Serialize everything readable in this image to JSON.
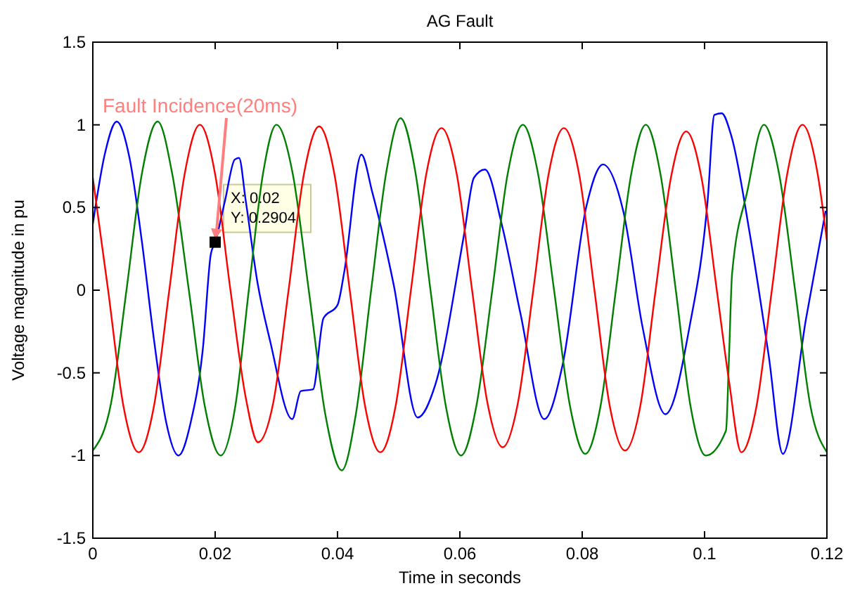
{
  "chart_data": {
    "type": "line",
    "title": "AG Fault",
    "xlabel": "Time in seconds",
    "ylabel": "Voltage magnitude in pu",
    "xlim": [
      0,
      0.12
    ],
    "xticks": [
      0,
      0.02,
      0.04,
      0.06,
      0.08,
      0.1,
      0.12
    ],
    "ylim": [
      -1.5,
      1.5
    ],
    "yticks": [
      -1.5,
      -1,
      -0.5,
      0,
      0.5,
      1,
      1.5
    ],
    "grid": false,
    "marker": "none",
    "line_style": "solid",
    "annotations": [
      {
        "text": "Fault Incidence(20ms)",
        "x": 0.02,
        "y": 0.2904
      },
      {
        "text": "X: 0.02\nY: 0.2904",
        "x": 0.02,
        "y": 0.2904
      }
    ],
    "series": [
      {
        "color": "#0000ff",
        "x": [
          0,
          0.002,
          0.0039,
          0.006,
          0.008,
          0.01,
          0.012,
          0.014,
          0.016,
          0.018,
          0.0193,
          0.02,
          0.0216,
          0.0232,
          0.0239,
          0.025,
          0.0269,
          0.029,
          0.0326,
          0.034,
          0.036,
          0.0377,
          0.04,
          0.0411,
          0.0439,
          0.0457,
          0.0492,
          0.0531,
          0.056,
          0.0607,
          0.0623,
          0.0641,
          0.0669,
          0.0699,
          0.0738,
          0.0768,
          0.0807,
          0.0834,
          0.0867,
          0.0899,
          0.0936,
          0.0975,
          0.1005,
          0.1016,
          0.1028,
          0.1044,
          0.1074,
          0.1105,
          0.1128,
          0.1166,
          0.1198
        ],
        "values": [
          0.4,
          0.83,
          1.02,
          0.8,
          0.3,
          -0.3,
          -0.8,
          -1.0,
          -0.8,
          -0.35,
          0.22,
          0.29,
          0.54,
          0.79,
          0.8,
          0.54,
          0.05,
          -0.31,
          -0.78,
          -0.61,
          -0.6,
          -0.17,
          -0.09,
          0.11,
          0.82,
          0.59,
          0.03,
          -0.77,
          -0.57,
          0.34,
          0.68,
          0.73,
          0.39,
          -0.14,
          -0.78,
          -0.45,
          0.51,
          0.76,
          0.48,
          -0.23,
          -0.75,
          -0.23,
          0.54,
          1.06,
          1.07,
          0.93,
          0.34,
          -0.4,
          -0.99,
          -0.17,
          0.48
        ]
      },
      {
        "color": "#008000",
        "x": [
          0,
          0.003,
          0.0055,
          0.008,
          0.0106,
          0.013,
          0.0157,
          0.0183,
          0.0209,
          0.0233,
          0.0255,
          0.0278,
          0.03,
          0.0327,
          0.0353,
          0.038,
          0.0407,
          0.043,
          0.0455,
          0.048,
          0.0503,
          0.0527,
          0.0552,
          0.0577,
          0.0602,
          0.0627,
          0.0653,
          0.0678,
          0.0703,
          0.0728,
          0.0754,
          0.078,
          0.0805,
          0.083,
          0.0855,
          0.088,
          0.0904,
          0.0928,
          0.0953,
          0.0977,
          0.1002,
          0.1035,
          0.104,
          0.1045,
          0.107,
          0.1097,
          0.1122,
          0.1148,
          0.1173,
          0.12
        ],
        "values": [
          -0.97,
          -0.68,
          0,
          0.7,
          1.02,
          0.7,
          0,
          -0.7,
          -1.0,
          -0.7,
          0,
          0.7,
          1.0,
          0.7,
          0,
          -0.75,
          -1.09,
          -0.75,
          0,
          0.72,
          1.04,
          0.72,
          0,
          -0.7,
          -1.0,
          -0.7,
          0,
          0.7,
          1.0,
          0.7,
          0,
          -0.7,
          -0.99,
          -0.7,
          0,
          0.7,
          1.0,
          0.7,
          0,
          -0.7,
          -1.0,
          -0.85,
          -0.4,
          0.1,
          0.6,
          1.0,
          0.7,
          0,
          -0.7,
          -0.98
        ]
      },
      {
        "color": "#ff0000",
        "x": [
          0,
          0.0025,
          0.005,
          0.0075,
          0.01,
          0.0125,
          0.015,
          0.0175,
          0.02,
          0.0225,
          0.025,
          0.027,
          0.0295,
          0.032,
          0.0345,
          0.037,
          0.0395,
          0.042,
          0.0445,
          0.047,
          0.0495,
          0.052,
          0.0545,
          0.057,
          0.0595,
          0.062,
          0.0645,
          0.067,
          0.0695,
          0.072,
          0.0745,
          0.077,
          0.0795,
          0.082,
          0.0845,
          0.087,
          0.0895,
          0.092,
          0.0945,
          0.097,
          0.0995,
          0.102,
          0.104,
          0.106,
          0.1085,
          0.111,
          0.1135,
          0.116,
          0.1185,
          0.12
        ],
        "values": [
          0.68,
          0,
          -0.7,
          -0.98,
          -0.7,
          0,
          0.7,
          1.0,
          0.7,
          0,
          -0.65,
          -0.92,
          -0.68,
          0,
          0.7,
          0.99,
          0.7,
          0,
          -0.7,
          -0.98,
          -0.7,
          0,
          0.7,
          0.98,
          0.7,
          0,
          -0.68,
          -0.95,
          -0.68,
          0,
          0.7,
          0.98,
          0.7,
          0,
          -0.7,
          -0.97,
          -0.7,
          0,
          0.68,
          0.96,
          0.68,
          0,
          -0.55,
          -0.98,
          -0.7,
          0,
          0.7,
          1.0,
          0.7,
          0.3
        ]
      }
    ]
  }
}
